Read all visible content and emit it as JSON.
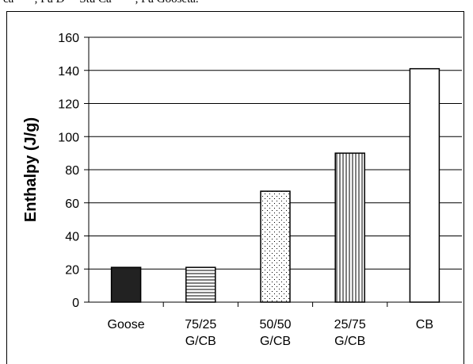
{
  "header_fragment": "ca ***, Fu D** Stu Ca****, Fu Gooseta.",
  "chart_data": {
    "type": "bar",
    "categories": [
      [
        "Goose"
      ],
      [
        "75/25",
        "G/CB"
      ],
      [
        "50/50",
        "G/CB"
      ],
      [
        "25/75",
        "G/CB"
      ],
      [
        "CB"
      ]
    ],
    "values": [
      21,
      21,
      67,
      90,
      141
    ],
    "fills": [
      "solid-dark",
      "horizontal-lines",
      "dots",
      "vertical-lines",
      "white"
    ],
    "ylabel": "Enthalpy (J/g)",
    "xlabel": "",
    "title": "",
    "ylim": [
      0,
      160
    ],
    "yticks": [
      0,
      20,
      40,
      60,
      80,
      100,
      120,
      140,
      160
    ],
    "grid": "horizontal",
    "colors": {
      "bar_dark": "#222222",
      "line": "#000000",
      "background": "#ffffff"
    }
  }
}
